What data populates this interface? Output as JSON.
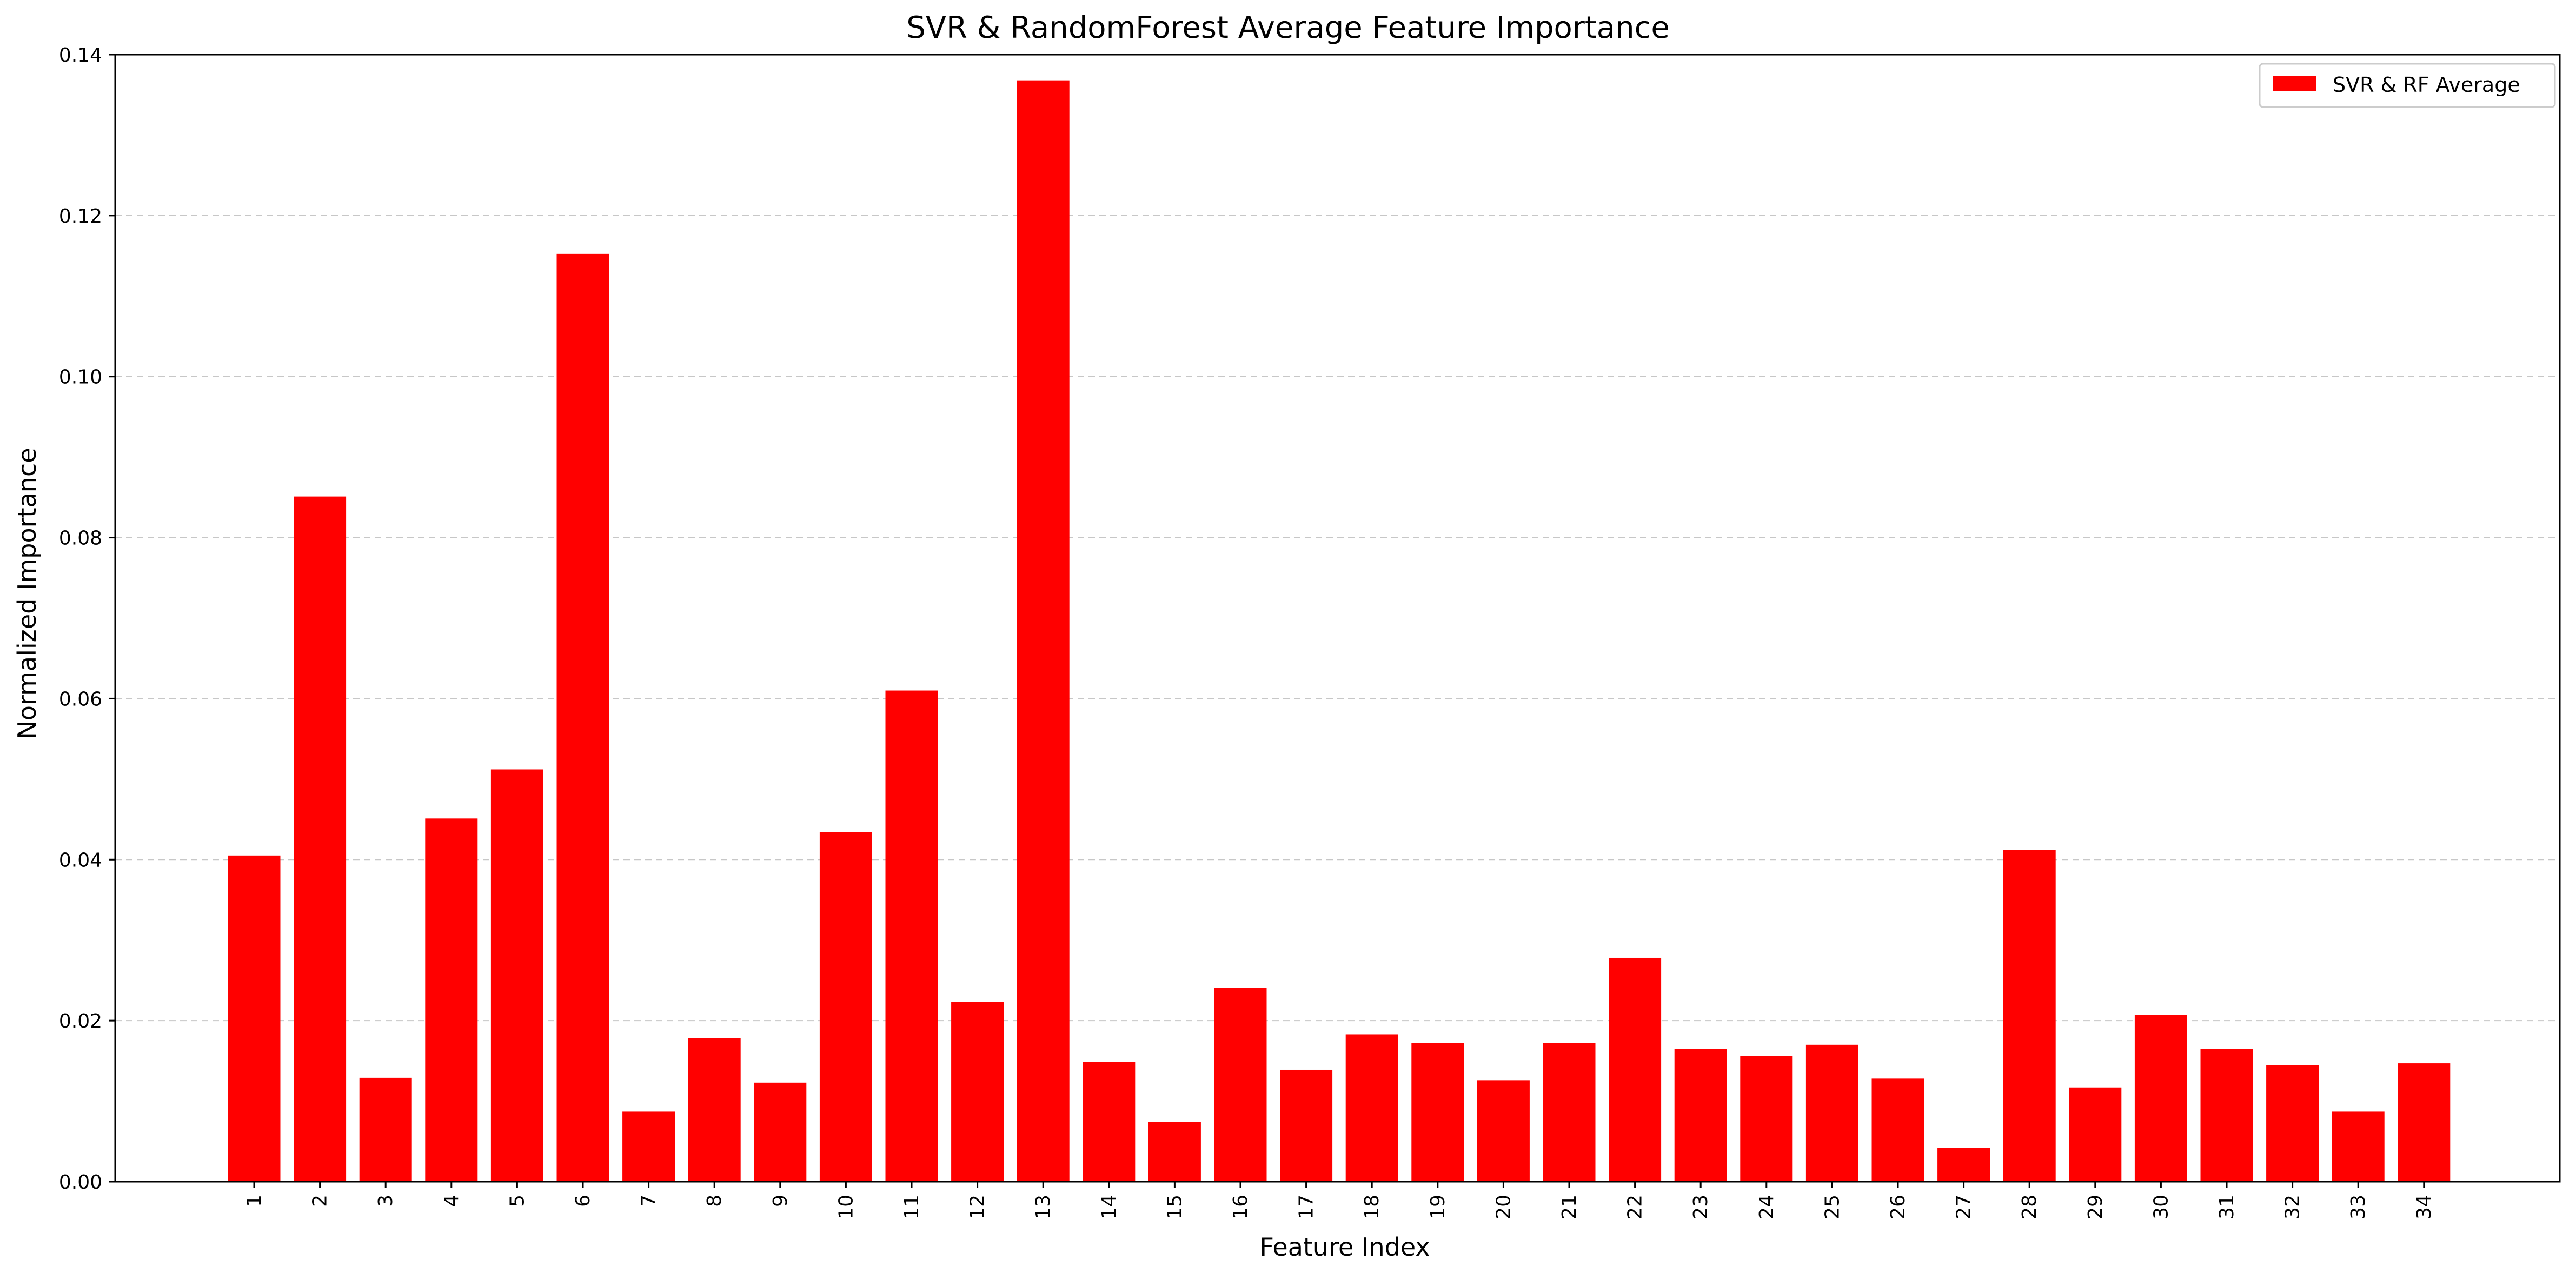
{
  "chart_data": {
    "type": "bar",
    "title": "SVR & RandomForest Average Feature Importance",
    "xlabel": "Feature Index",
    "ylabel": "Normalized Importance",
    "categories": [
      "1",
      "2",
      "3",
      "4",
      "5",
      "6",
      "7",
      "8",
      "9",
      "10",
      "11",
      "12",
      "13",
      "14",
      "15",
      "16",
      "17",
      "18",
      "19",
      "20",
      "21",
      "22",
      "23",
      "24",
      "25",
      "26",
      "27",
      "28",
      "29",
      "30",
      "31",
      "32",
      "33",
      "34"
    ],
    "series": [
      {
        "name": "SVR & RF Average",
        "color": "#ff0000",
        "values": [
          0.0405,
          0.0851,
          0.0129,
          0.0451,
          0.0512,
          0.1153,
          0.0087,
          0.0178,
          0.0123,
          0.0434,
          0.061,
          0.0223,
          0.1368,
          0.0149,
          0.0074,
          0.0241,
          0.0139,
          0.0183,
          0.0172,
          0.0126,
          0.0172,
          0.0278,
          0.0165,
          0.0156,
          0.017,
          0.0128,
          0.0042,
          0.0412,
          0.0117,
          0.0207,
          0.0165,
          0.0145,
          0.0087,
          0.0147
        ]
      }
    ],
    "ylim": [
      0,
      0.14
    ],
    "yticks": [
      "0.00",
      "0.02",
      "0.04",
      "0.06",
      "0.08",
      "0.10",
      "0.12",
      "0.14"
    ],
    "grid": "y-dashed",
    "legend_position": "top-right"
  }
}
